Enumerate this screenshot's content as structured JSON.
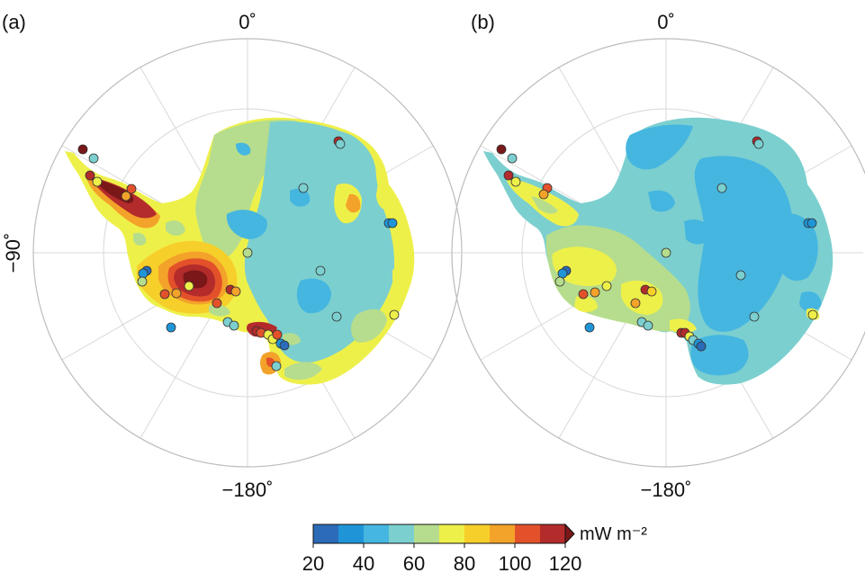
{
  "panels": [
    {
      "id": "a",
      "label": "(a)",
      "lon_top": "0˚",
      "lon_left": "−90˚",
      "lon_bottom": "−180˚"
    },
    {
      "id": "b",
      "label": "(b)",
      "lon_top": "0˚",
      "lon_bottom": "−180˚"
    }
  ],
  "colorbar": {
    "unit": "mW m⁻²",
    "ticks": [
      "20",
      "40",
      "60",
      "80",
      "100",
      "120"
    ],
    "extend": "max",
    "colors": [
      "#2b6bb8",
      "#1f95d8",
      "#45b6e0",
      "#7ccfcf",
      "#b6dd8d",
      "#eef04a",
      "#f7cf2a",
      "#f3a22a",
      "#e3512a",
      "#b32b2b"
    ],
    "over_color": "#7a1718"
  },
  "map_colors": {
    "water_circle": "#bdbdbd",
    "grid": "#d6d6d6"
  }
}
